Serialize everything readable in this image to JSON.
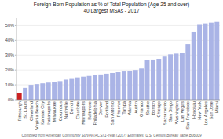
{
  "chart_data": {
    "type": "bar",
    "title": "Foreign-Born Population as % of Total Population (Age 25 and over)",
    "subtitle": "40 Largest MSAs - 2017",
    "footnote": "Compiled from American Community Survey (ACS) 1-Year (2017) Estimates; U.S. Census Bureau Table B06009",
    "categories": [
      "Pittsburgh",
      "St. Louis",
      "Cleveland",
      "Virginia Beach",
      "Kansas City",
      "Indianapolis",
      "Milwaukee",
      "Columbus",
      "Nashville",
      "Detroit",
      "Charlotte",
      "Minneapolis",
      "Baltimore",
      "Philadelphia",
      "Denver",
      "Portland",
      "San Antonio",
      "Phoenix",
      "Tampa",
      "Atlanta",
      "Austin",
      "Orlando",
      "Seattle",
      "Boston",
      "Chicago",
      "Sacramento",
      "San Diego",
      "Washington",
      "Las Vegas",
      "San Francisco",
      "Honolulu",
      "New York",
      "Los Angeles",
      "San Jose",
      "Miami"
    ],
    "values": [
      4.5,
      8.0,
      10.0,
      10.5,
      11.0,
      11.5,
      12.0,
      12.5,
      13.5,
      14.5,
      15.0,
      15.5,
      16.0,
      16.5,
      17.0,
      17.5,
      18.0,
      18.5,
      19.0,
      19.5,
      20.0,
      21.0,
      26.5,
      27.0,
      27.5,
      29.5,
      30.5,
      31.0,
      31.5,
      37.5,
      45.5,
      50.5,
      51.5,
      52.0,
      52.5
    ],
    "colors": [
      "#cc2222",
      "#aab4e6",
      "#aab4e6",
      "#aab4e6",
      "#aab4e6",
      "#aab4e6",
      "#aab4e6",
      "#aab4e6",
      "#aab4e6",
      "#aab4e6",
      "#aab4e6",
      "#aab4e6",
      "#aab4e6",
      "#aab4e6",
      "#aab4e6",
      "#aab4e6",
      "#aab4e6",
      "#aab4e6",
      "#aab4e6",
      "#aab4e6",
      "#aab4e6",
      "#aab4e6",
      "#aab4e6",
      "#aab4e6",
      "#aab4e6",
      "#aab4e6",
      "#aab4e6",
      "#aab4e6",
      "#aab4e6",
      "#aab4e6",
      "#aab4e6",
      "#aab4e6",
      "#aab4e6",
      "#aab4e6",
      "#aab4e6"
    ],
    "ylim": [
      0,
      55
    ],
    "yticks": [
      {
        "value": 0,
        "label": "0%"
      },
      {
        "value": 10,
        "label": "10%"
      },
      {
        "value": 20,
        "label": "20%"
      },
      {
        "value": 30,
        "label": "30%"
      },
      {
        "value": 40,
        "label": "40%"
      },
      {
        "value": 50,
        "label": "50%"
      }
    ],
    "grid": true
  }
}
